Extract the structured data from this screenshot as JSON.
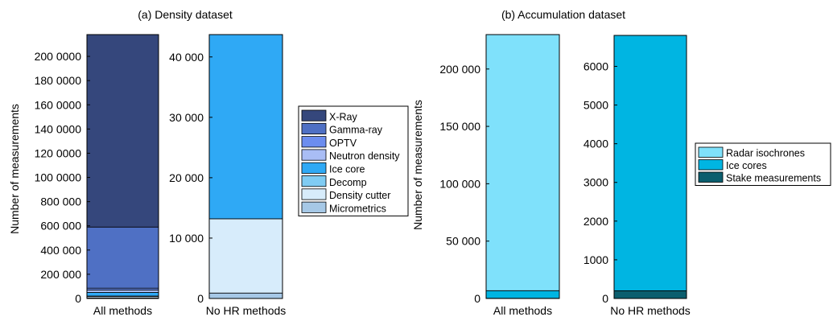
{
  "figure": {
    "panel_a_title": "(a) Density dataset",
    "panel_b_title": "(b) Accumulation dataset",
    "ylabel": "Number of measurements"
  },
  "chart_data": [
    {
      "id": "a_all",
      "type": "bar",
      "stacked": true,
      "panel": "a",
      "categories": [
        "All methods"
      ],
      "ylim": [
        0,
        2180000
      ],
      "yticks": [
        0,
        200000,
        400000,
        600000,
        800000,
        1000000,
        1200000,
        1400000,
        1600000,
        1800000,
        2000000
      ],
      "ytick_labels": [
        "0",
        "200 000",
        "400 000",
        "600 000",
        "800 000",
        "100 0000",
        "120 0000",
        "140 0000",
        "160 0000",
        "180 0000",
        "200 0000"
      ],
      "ylabel": "Number of measurements",
      "series": [
        {
          "name": "Micrometrics",
          "color": "#a6c8e6",
          "values": [
            5000
          ]
        },
        {
          "name": "Density cutter",
          "color": "#d7ecfb",
          "values": [
            12000
          ]
        },
        {
          "name": "Decomp",
          "color": "#80ccf3",
          "values": [
            3000
          ]
        },
        {
          "name": "Ice core",
          "color": "#2fa9f5",
          "values": [
            30000
          ]
        },
        {
          "name": "Neutron density",
          "color": "#a9bdf5",
          "values": [
            20000
          ]
        },
        {
          "name": "OPTV",
          "color": "#6c8def",
          "values": [
            15000
          ]
        },
        {
          "name": "Gamma-ray",
          "color": "#4f70c4",
          "values": [
            505000
          ]
        },
        {
          "name": "X-Ray",
          "color": "#35477c",
          "values": [
            1590000
          ]
        }
      ]
    },
    {
      "id": "a_nohr",
      "type": "bar",
      "stacked": true,
      "panel": "a",
      "categories": [
        "No HR methods"
      ],
      "ylim": [
        0,
        43700
      ],
      "yticks": [
        0,
        10000,
        20000,
        30000,
        40000
      ],
      "ytick_labels": [
        "0",
        "10 000",
        "20 000",
        "30 000",
        "40 000"
      ],
      "series": [
        {
          "name": "Micrometrics",
          "color": "#a6c8e6",
          "values": [
            900
          ]
        },
        {
          "name": "Density cutter",
          "color": "#d7ecfb",
          "values": [
            12300
          ]
        },
        {
          "name": "Ice core",
          "color": "#2fa9f5",
          "values": [
            30500
          ]
        }
      ]
    },
    {
      "id": "b_all",
      "type": "bar",
      "stacked": true,
      "panel": "b",
      "categories": [
        "All methods"
      ],
      "ylim": [
        0,
        230000
      ],
      "yticks": [
        0,
        50000,
        100000,
        150000,
        200000
      ],
      "ytick_labels": [
        "0",
        "50 000",
        "100 000",
        "150 000",
        "200 000"
      ],
      "ylabel": "Number of measurements",
      "series": [
        {
          "name": "Stake measurements",
          "color": "#0b5e6e",
          "values": [
            200
          ]
        },
        {
          "name": "Ice cores",
          "color": "#00b5e2",
          "values": [
            6600
          ]
        },
        {
          "name": "Radar isochrones",
          "color": "#7fe1fb",
          "values": [
            223200
          ]
        }
      ]
    },
    {
      "id": "b_nohr",
      "type": "bar",
      "stacked": true,
      "panel": "b",
      "categories": [
        "No HR methods"
      ],
      "ylim": [
        0,
        6800
      ],
      "yticks": [
        0,
        1000,
        2000,
        3000,
        4000,
        5000,
        6000
      ],
      "ytick_labels": [
        "0",
        "1000",
        "2000",
        "3000",
        "4000",
        "5000",
        "6000"
      ],
      "series": [
        {
          "name": "Stake measurements",
          "color": "#0b5e6e",
          "values": [
            200
          ]
        },
        {
          "name": "Ice cores",
          "color": "#00b5e2",
          "values": [
            6600
          ]
        }
      ]
    }
  ],
  "legends": {
    "a": [
      "X-Ray",
      "Gamma-ray",
      "OPTV",
      "Neutron density",
      "Ice core",
      "Decomp",
      "Density cutter",
      "Micrometrics"
    ],
    "b": [
      "Radar isochrones",
      "Ice cores",
      "Stake measurements"
    ]
  },
  "colors": {
    "X-Ray": "#35477c",
    "Gamma-ray": "#4f70c4",
    "OPTV": "#6c8def",
    "Neutron density": "#a9bdf5",
    "Ice core": "#2fa9f5",
    "Decomp": "#80ccf3",
    "Density cutter": "#d7ecfb",
    "Micrometrics": "#a6c8e6",
    "Radar isochrones": "#7fe1fb",
    "Ice cores": "#00b5e2",
    "Stake measurements": "#0b5e6e"
  }
}
